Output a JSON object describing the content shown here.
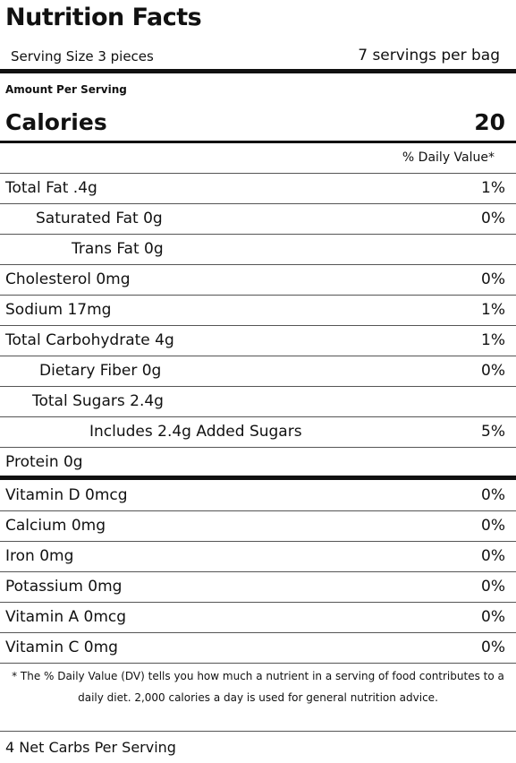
{
  "title": "Nutrition Facts",
  "serving_size": "Serving Size 3 pieces",
  "servings_per": "7 servings per bag",
  "amount_per_serving": "Amount Per Serving",
  "calories_label": "Calories",
  "calories_value": "20",
  "dv_header": "% Daily Value*",
  "nutrients": [
    {
      "name": "Total Fat .4g",
      "pct": "1%"
    },
    {
      "name": "Saturated Fat 0g",
      "pct": "0%"
    },
    {
      "name": "Trans Fat 0g",
      "pct": ""
    },
    {
      "name": "Cholesterol 0mg",
      "pct": "0%"
    },
    {
      "name": "Sodium 17mg",
      "pct": "1%"
    },
    {
      "name": "Total Carbohydrate 4g",
      "pct": "1%"
    },
    {
      "name": "Dietary Fiber 0g",
      "pct": "0%"
    },
    {
      "name": "Total Sugars 2.4g",
      "pct": ""
    },
    {
      "name": "Includes 2.4g Added Sugars",
      "pct": "5%"
    },
    {
      "name": "Protein 0g",
      "pct": ""
    }
  ],
  "vitamins": [
    {
      "name": "Vitamin D 0mcg",
      "pct": "0%"
    },
    {
      "name": "Calcium 0mg",
      "pct": "0%"
    },
    {
      "name": "Iron 0mg",
      "pct": "0%"
    },
    {
      "name": "Potassium 0mg",
      "pct": "0%"
    },
    {
      "name": "Vitamin A 0mcg",
      "pct": "0%"
    },
    {
      "name": "Vitamin C 0mg",
      "pct": "0%"
    }
  ],
  "footnote": "* The % Daily Value (DV) tells you how much a nutrient in a serving of food contributes to a daily diet. 2,000 calories a day is used for general nutrition advice.",
  "net_carbs": "4 Net Carbs Per Serving"
}
